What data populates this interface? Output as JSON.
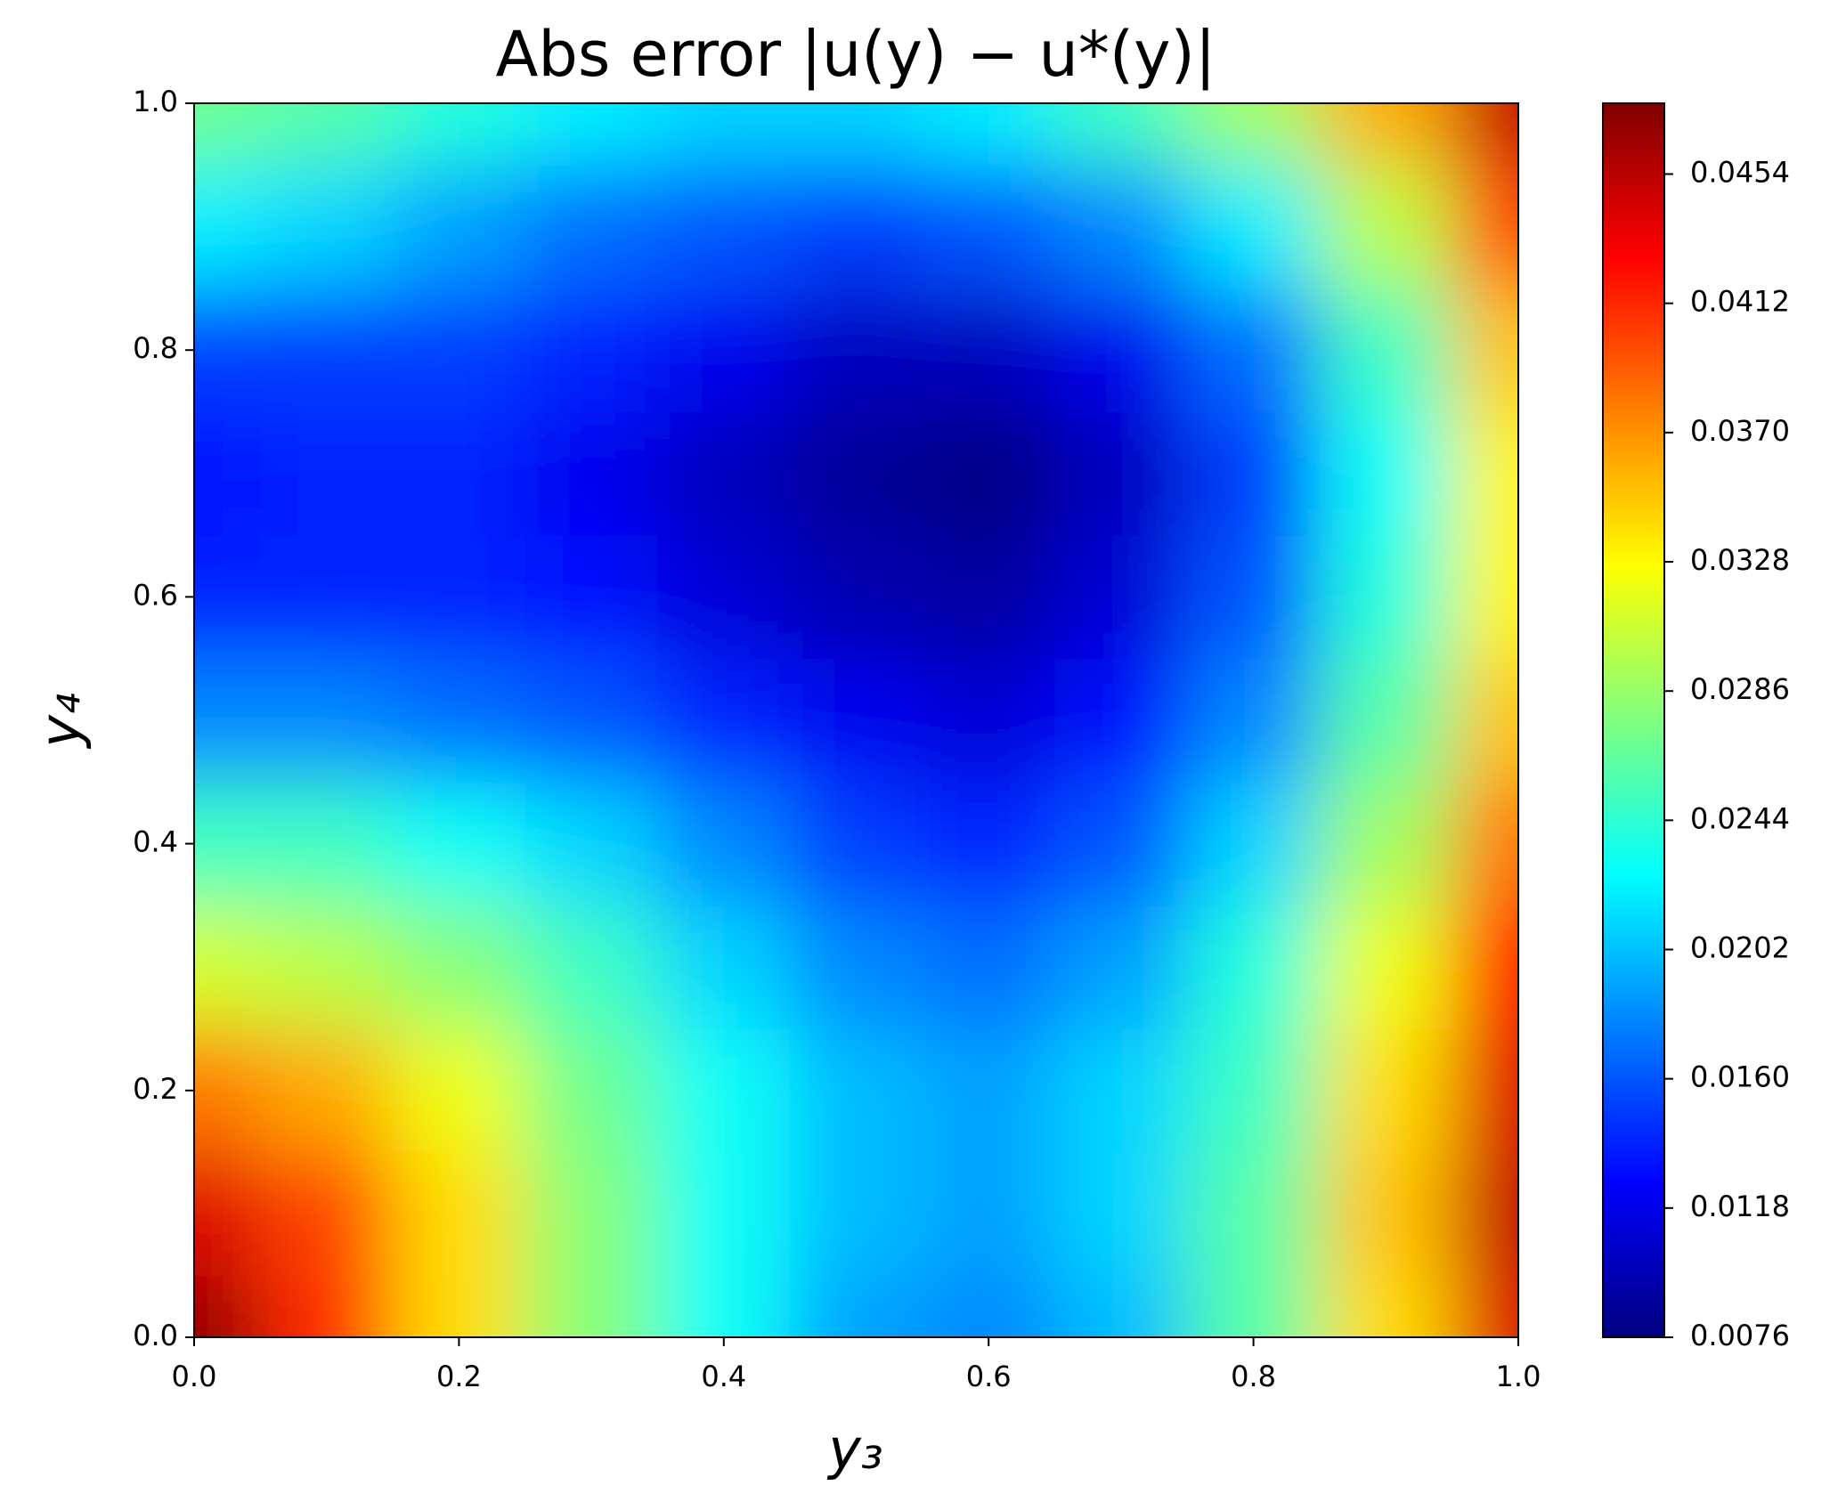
{
  "chart_data": {
    "type": "heatmap",
    "title": "Abs error |u(y) − u*(y)|",
    "x_label": "y₃",
    "y_label": "y₄",
    "colormap": "jet",
    "x": [
      0,
      0.1,
      0.2,
      0.3,
      0.4,
      0.5,
      0.6,
      0.7,
      0.8,
      0.9,
      1
    ],
    "y": [
      0,
      0.1,
      0.2,
      0.3,
      0.4,
      0.5,
      0.6,
      0.7,
      0.8,
      0.9,
      1
    ],
    "z": [
      [
        0.047,
        0.041,
        0.034,
        0.028,
        0.023,
        0.019,
        0.018,
        0.02,
        0.026,
        0.034,
        0.044
      ],
      [
        0.044,
        0.04,
        0.034,
        0.028,
        0.023,
        0.02,
        0.019,
        0.021,
        0.026,
        0.035,
        0.045
      ],
      [
        0.038,
        0.036,
        0.032,
        0.027,
        0.023,
        0.02,
        0.019,
        0.021,
        0.025,
        0.034,
        0.044
      ],
      [
        0.031,
        0.03,
        0.028,
        0.025,
        0.021,
        0.018,
        0.017,
        0.019,
        0.024,
        0.032,
        0.042
      ],
      [
        0.025,
        0.025,
        0.023,
        0.021,
        0.018,
        0.015,
        0.014,
        0.016,
        0.021,
        0.029,
        0.038
      ],
      [
        0.018,
        0.018,
        0.017,
        0.016,
        0.014,
        0.012,
        0.011,
        0.013,
        0.018,
        0.026,
        0.035
      ],
      [
        0.014,
        0.014,
        0.014,
        0.013,
        0.011,
        0.0095,
        0.009,
        0.011,
        0.016,
        0.024,
        0.033
      ],
      [
        0.013,
        0.014,
        0.014,
        0.012,
        0.01,
        0.0085,
        0.0078,
        0.01,
        0.015,
        0.023,
        0.033
      ],
      [
        0.015,
        0.015,
        0.015,
        0.014,
        0.012,
        0.01,
        0.01,
        0.012,
        0.017,
        0.025,
        0.035
      ],
      [
        0.022,
        0.021,
        0.019,
        0.017,
        0.016,
        0.015,
        0.016,
        0.018,
        0.022,
        0.03,
        0.04
      ],
      [
        0.027,
        0.026,
        0.024,
        0.022,
        0.021,
        0.021,
        0.022,
        0.025,
        0.029,
        0.036,
        0.045
      ]
    ],
    "xlim": [
      0,
      1
    ],
    "ylim": [
      0,
      1
    ],
    "xticks": [
      {
        "value": 0,
        "label": "0.0"
      },
      0.2,
      0.4,
      0.6,
      0.8,
      {
        "value": 1,
        "label": "1.0"
      }
    ],
    "yticks": [
      {
        "value": 0,
        "label": "0.0"
      },
      0.2,
      0.4,
      0.6,
      0.8,
      {
        "value": 1,
        "label": "1.0"
      }
    ],
    "clim": [
      0.0076,
      0.0477
    ],
    "cticks": [
      0.0076,
      0.0118,
      {
        "value": 0.016,
        "label": "0.0160"
      },
      0.0202,
      0.0244,
      0.0286,
      0.0328,
      {
        "value": 0.037,
        "label": "0.0370"
      },
      0.0412,
      0.0454
    ]
  }
}
